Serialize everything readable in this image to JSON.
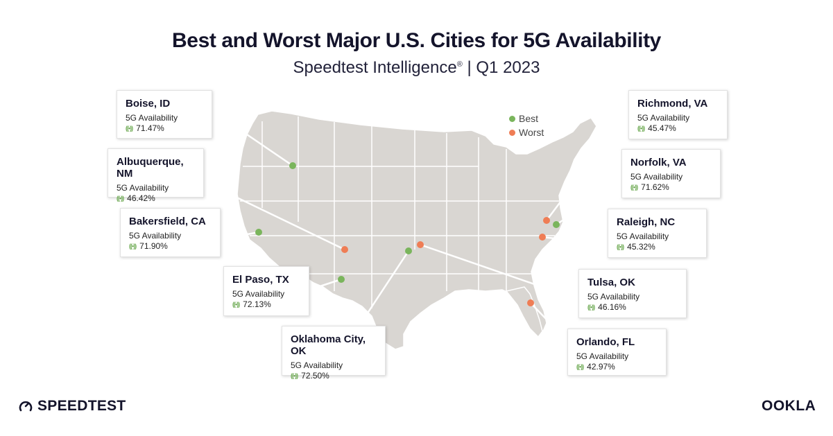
{
  "title": "Best and Worst Major U.S. Cities for 5G Availability",
  "subtitle": "Speedtest Intelligence",
  "subtitle_mark": "®",
  "subtitle_period": "| Q1 2023",
  "legend": {
    "best": {
      "label": "Best",
      "color": "#7ab55c"
    },
    "worst": {
      "label": "Worst",
      "color": "#ef7d55"
    }
  },
  "metric_label": "5G Availability",
  "cities": [
    {
      "id": "boise",
      "name": "Boise, ID",
      "value": "71.47%",
      "type": "best"
    },
    {
      "id": "albuquerque",
      "name": "Albuquerque, NM",
      "value": "46.42%",
      "type": "worst"
    },
    {
      "id": "bakersfield",
      "name": "Bakersfield, CA",
      "value": "71.90%",
      "type": "best"
    },
    {
      "id": "elpaso",
      "name": "El Paso, TX",
      "value": "72.13%",
      "type": "best"
    },
    {
      "id": "oklahomacity",
      "name": "Oklahoma City, OK",
      "value": "72.50%",
      "type": "best"
    },
    {
      "id": "richmond",
      "name": "Richmond, VA",
      "value": "45.47%",
      "type": "worst"
    },
    {
      "id": "norfolk",
      "name": "Norfolk, VA",
      "value": "71.62%",
      "type": "best"
    },
    {
      "id": "raleigh",
      "name": "Raleigh, NC",
      "value": "45.32%",
      "type": "worst"
    },
    {
      "id": "tulsa",
      "name": "Tulsa, OK",
      "value": "46.16%",
      "type": "worst"
    },
    {
      "id": "orlando",
      "name": "Orlando, FL",
      "value": "42.97%",
      "type": "worst"
    }
  ],
  "brand": {
    "left": "SPEEDTEST",
    "right": "OOKLA"
  },
  "icons": {
    "signal": "signal-icon",
    "speedtest_logo": "gauge-icon"
  }
}
